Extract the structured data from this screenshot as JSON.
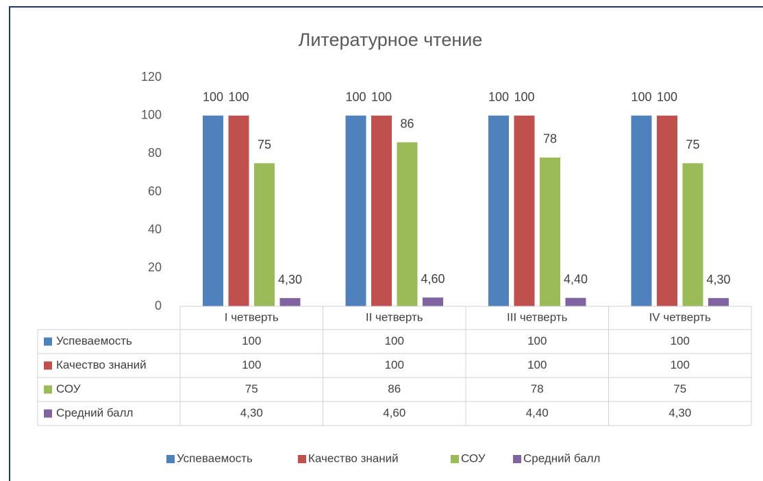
{
  "chart_data": {
    "type": "bar",
    "title": "Литературное чтение",
    "categories": [
      "I четверть",
      "II четверть",
      "III четверть",
      "IV четверть"
    ],
    "series": [
      {
        "name": "Успеваемость",
        "color": "#4f81bd",
        "values": [
          100,
          100,
          100,
          100
        ]
      },
      {
        "name": "Качество знаний",
        "color": "#c0504d",
        "values": [
          100,
          100,
          100,
          100
        ]
      },
      {
        "name": "СОУ",
        "color": "#9bbb59",
        "values": [
          75,
          86,
          78,
          75
        ]
      },
      {
        "name": "Средний балл",
        "color": "#8064a2",
        "values": [
          4.3,
          4.6,
          4.4,
          4.3
        ],
        "value_labels": [
          "4,30",
          "4,60",
          "4,40",
          "4,30"
        ]
      }
    ],
    "ylim": [
      0,
      120
    ],
    "yticks": [
      0,
      20,
      40,
      60,
      80,
      100,
      120
    ],
    "grid": false,
    "legend": "bottom",
    "data_table": true
  }
}
